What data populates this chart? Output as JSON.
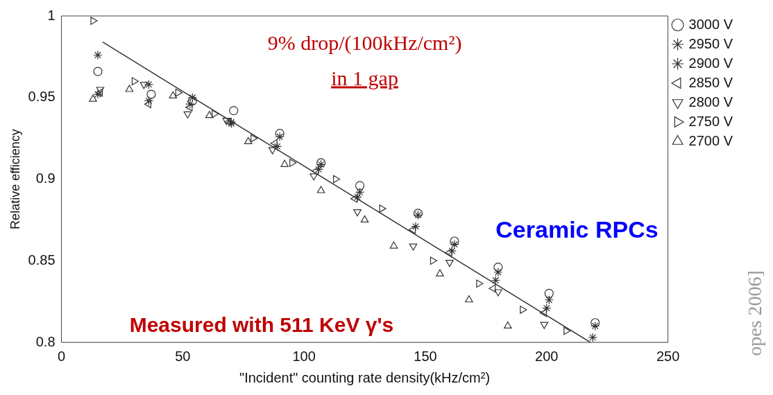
{
  "chart_data": {
    "type": "scatter",
    "xlabel": "\"Incident\" counting rate density(kHz/cm²)",
    "ylabel": "Relative efficiency",
    "xlim": [
      0,
      250
    ],
    "xticks": [
      0,
      50,
      100,
      150,
      200,
      250
    ],
    "ylim": [
      0.8,
      1
    ],
    "yticks": [
      0.8,
      0.85,
      0.9,
      0.95,
      1
    ],
    "grid": false,
    "legend": "top right",
    "series": [
      {
        "name": "3000 V",
        "color": "#333333",
        "marker": "circle",
        "x": [
          15,
          37,
          54,
          71,
          90,
          107,
          123,
          147,
          162,
          180,
          201,
          220
        ],
        "values": [
          0.966,
          0.952,
          0.948,
          0.942,
          0.928,
          0.91,
          0.896,
          0.879,
          0.862,
          0.846,
          0.83,
          0.812
        ]
      },
      {
        "name": "2950 V",
        "color": "#333333",
        "marker": "cross",
        "x": [
          15,
          36,
          54,
          70,
          90,
          107,
          123,
          147,
          162,
          180,
          201,
          220
        ],
        "values": [
          0.976,
          0.958,
          0.95,
          0.935,
          0.926,
          0.909,
          0.892,
          0.878,
          0.86,
          0.843,
          0.826,
          0.81
        ]
      },
      {
        "name": "2900 V",
        "color": "#333333",
        "marker": "cross",
        "x": [
          15,
          36,
          53,
          70,
          89,
          106,
          122,
          146,
          161,
          179,
          200,
          219
        ],
        "values": [
          0.952,
          0.948,
          0.946,
          0.934,
          0.92,
          0.906,
          0.889,
          0.871,
          0.856,
          0.838,
          0.821,
          0.803
        ]
      },
      {
        "name": "2850 V",
        "color": "#333333",
        "marker": "triangle-left",
        "x": [
          16,
          36,
          53,
          69,
          88,
          105,
          121,
          145,
          160,
          178,
          199
        ],
        "values": [
          0.953,
          0.946,
          0.944,
          0.935,
          0.922,
          0.905,
          0.888,
          0.869,
          0.855,
          0.833,
          0.818
        ]
      },
      {
        "name": "2800 V",
        "color": "#333333",
        "marker": "triangle-down",
        "x": [
          16,
          34,
          52,
          68,
          87,
          104,
          122,
          145,
          160,
          180,
          199
        ],
        "values": [
          0.955,
          0.958,
          0.94,
          0.936,
          0.918,
          0.902,
          0.88,
          0.859,
          0.849,
          0.831,
          0.811
        ]
      },
      {
        "name": "2750 V",
        "color": "#333333",
        "marker": "triangle-right",
        "x": [
          13,
          30,
          48,
          63,
          79,
          95,
          113,
          132,
          153,
          172,
          190,
          208
        ],
        "values": [
          0.997,
          0.96,
          0.953,
          0.94,
          0.925,
          0.91,
          0.9,
          0.882,
          0.85,
          0.836,
          0.82,
          0.807
        ]
      },
      {
        "name": "2700 V",
        "color": "#333333",
        "marker": "triangle",
        "x": [
          13,
          28,
          46,
          61,
          77,
          92,
          107,
          125,
          137,
          156,
          168,
          184
        ],
        "values": [
          0.949,
          0.955,
          0.951,
          0.939,
          0.923,
          0.909,
          0.893,
          0.875,
          0.859,
          0.842,
          0.826,
          0.81
        ]
      },
      {
        "type": "line",
        "color": "#333333",
        "marker": "none",
        "x": [
          17,
          218
        ],
        "values": [
          0.984,
          0.8
        ]
      }
    ],
    "annotations": [
      "9% drop/(100kHz/cm²)",
      "in 1 gap",
      "Ceramic RPCs",
      "Measured with 511 KeV γ's",
      "opes 2006]"
    ]
  }
}
